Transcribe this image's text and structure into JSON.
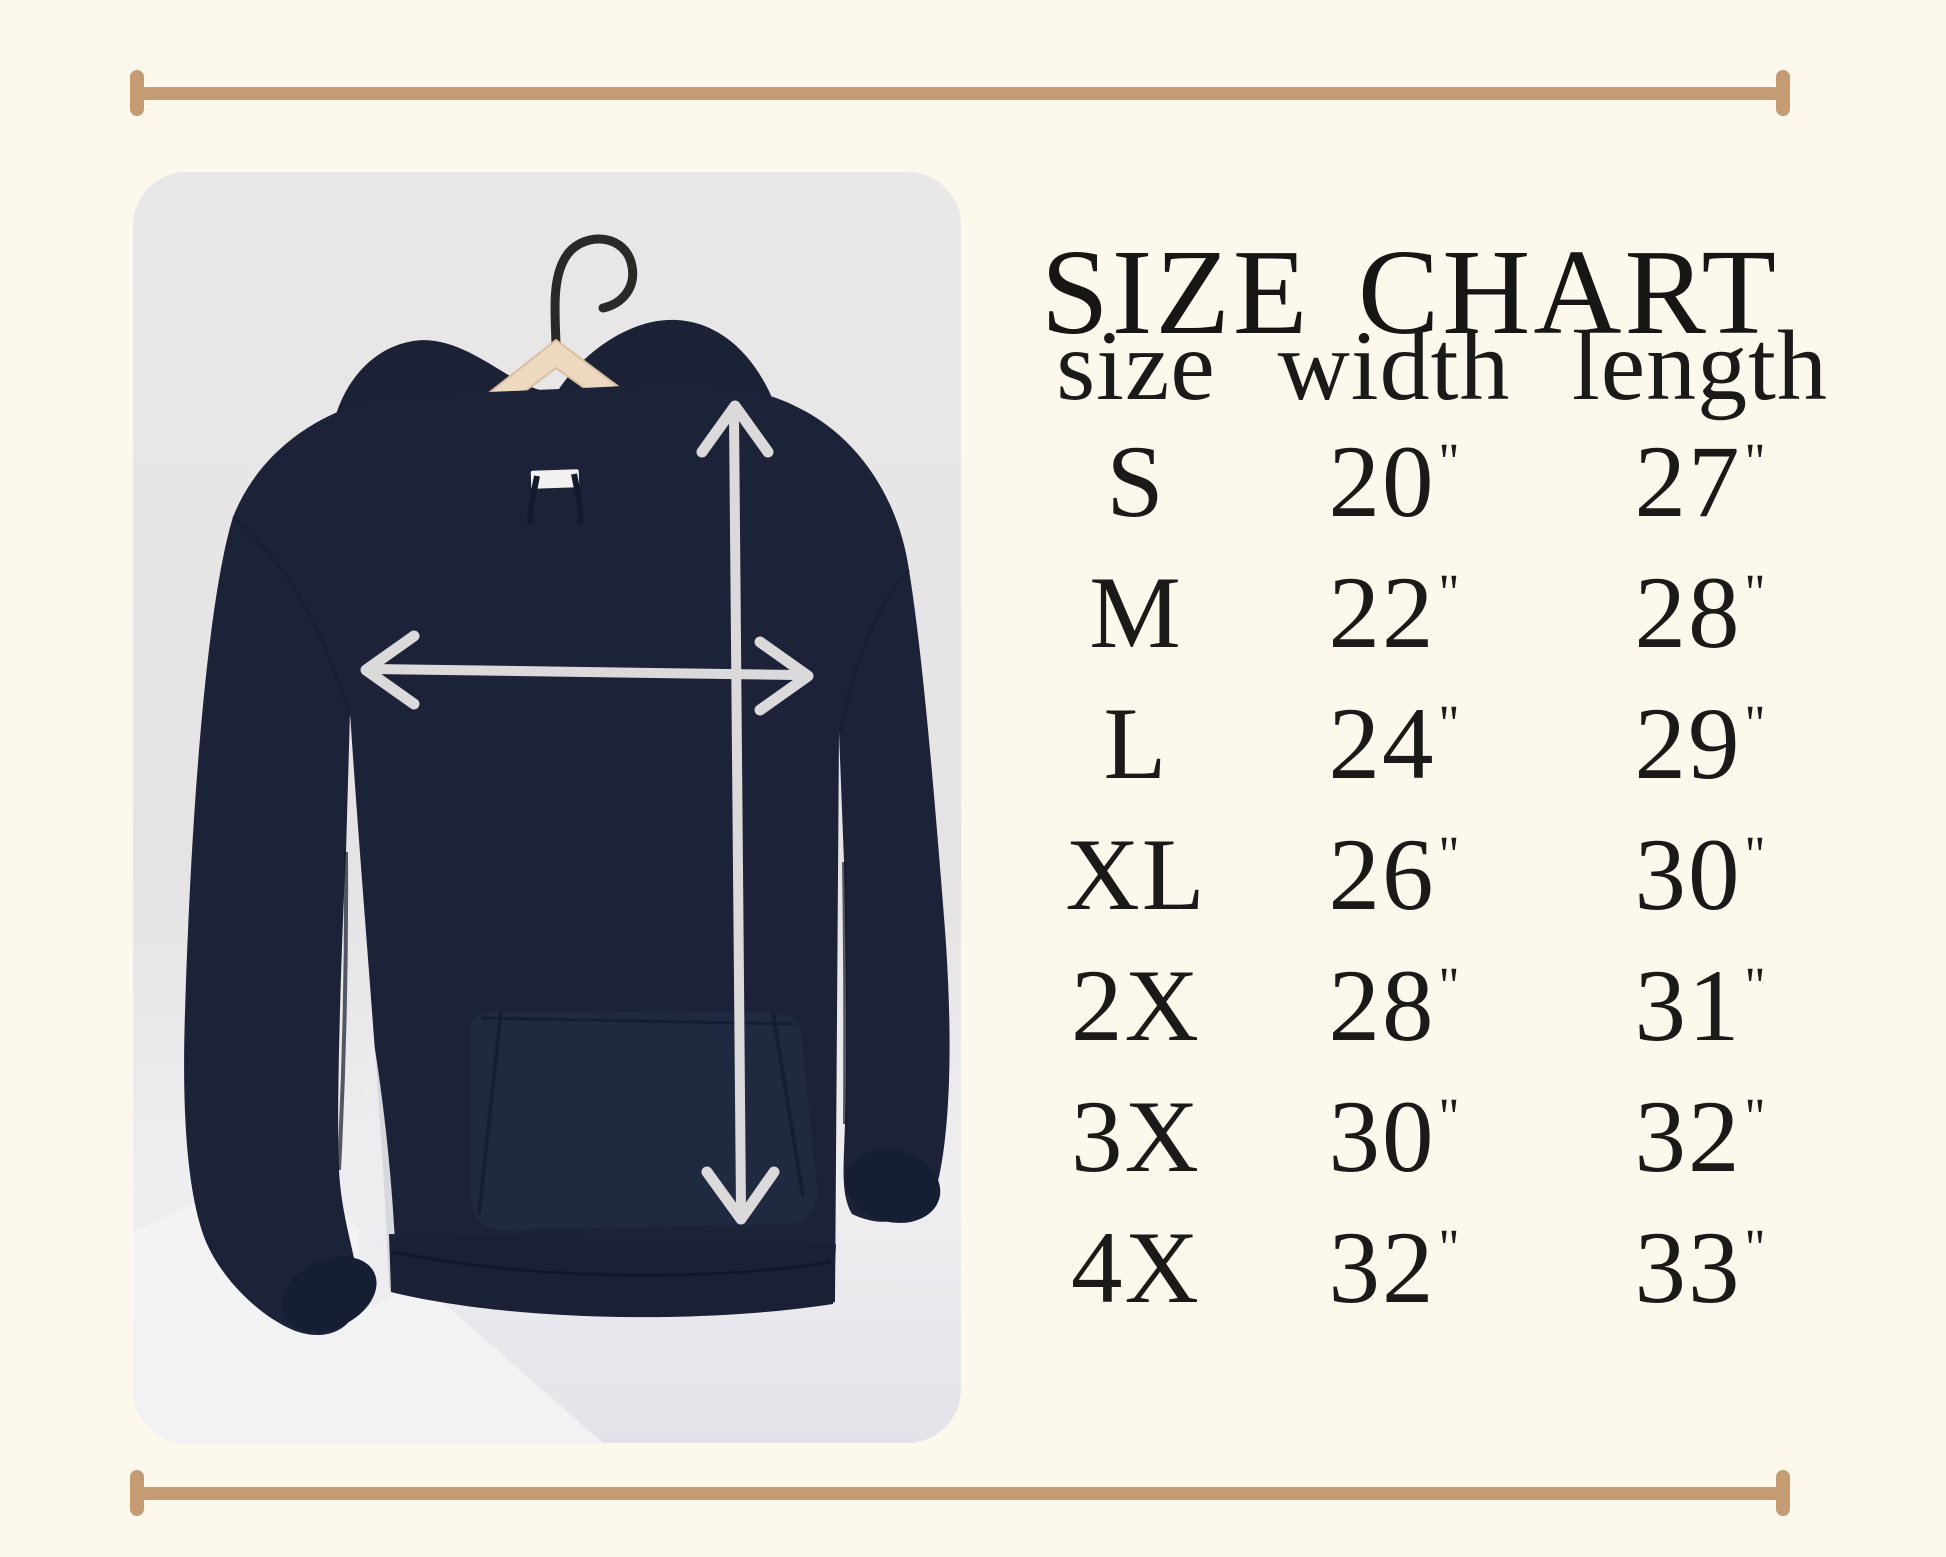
{
  "page": {
    "title": "SIZE CHART"
  },
  "photo": {
    "description": "navy hoodie hanging on wooden hanger with measurement arrows",
    "icons": [
      "hanger-icon",
      "width-arrow-icon",
      "length-arrow-icon"
    ]
  },
  "chart_data": {
    "type": "table",
    "title": "SIZE CHART",
    "columns": [
      "size",
      "width",
      "length"
    ],
    "rows": [
      {
        "size": "S",
        "width": "20\"",
        "length": "27\""
      },
      {
        "size": "M",
        "width": "22\"",
        "length": "28\""
      },
      {
        "size": "L",
        "width": "24\"",
        "length": "29\""
      },
      {
        "size": "XL",
        "width": "26\"",
        "length": "30\""
      },
      {
        "size": "2X",
        "width": "28\"",
        "length": "31\""
      },
      {
        "size": "3X",
        "width": "30\"",
        "length": "32\""
      },
      {
        "size": "4X",
        "width": "32\"",
        "length": "33\""
      }
    ],
    "unit_symbol": "\""
  },
  "colors": {
    "background": "#fcf8ec",
    "ruler": "#c59c72",
    "text": "#1b1a18",
    "hoodie_navy": "#1c2338",
    "wall_gray": "#e7e5e6",
    "arrow_gray": "#dbd9da",
    "hanger_wood": "#ecd9bf"
  }
}
